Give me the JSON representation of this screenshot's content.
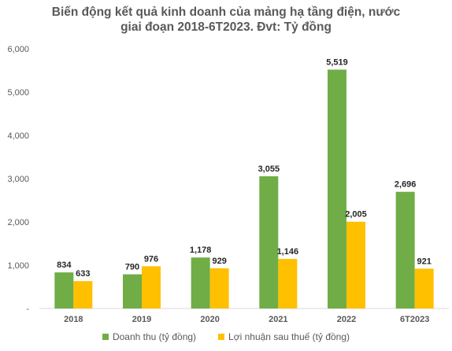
{
  "chart_data": {
    "type": "bar",
    "title_lines": [
      "Biến động kết quả kinh doanh của mảng hạ tầng điện, nước",
      "giai đoạn 2018-6T2023. Đvt: Tỷ đồng"
    ],
    "categories": [
      "2018",
      "2019",
      "2020",
      "2021",
      "2022",
      "6T2023"
    ],
    "series": [
      {
        "name": "Doanh thu (tỷ đồng)",
        "color": "#70ad47",
        "values": [
          834,
          790,
          1178,
          3055,
          5519,
          2696
        ],
        "labels": [
          "834",
          "790",
          "1,178",
          "3,055",
          "5,519",
          "2,696"
        ]
      },
      {
        "name": "Lợi nhuận sau thuế (tỷ đồng)",
        "color": "#ffc000",
        "values": [
          633,
          976,
          929,
          1146,
          2005,
          921
        ],
        "labels": [
          "633",
          "976",
          "929",
          "1,146",
          "2,005",
          "921"
        ]
      }
    ],
    "ylim": [
      0,
      6000
    ],
    "yticks": [
      0,
      1000,
      2000,
      3000,
      4000,
      5000,
      6000
    ],
    "ytick_labels": [
      "-",
      "1,000",
      "2,000",
      "3,000",
      "4,000",
      "5,000",
      "6,000"
    ],
    "grid": false,
    "legend_position": "bottom"
  }
}
